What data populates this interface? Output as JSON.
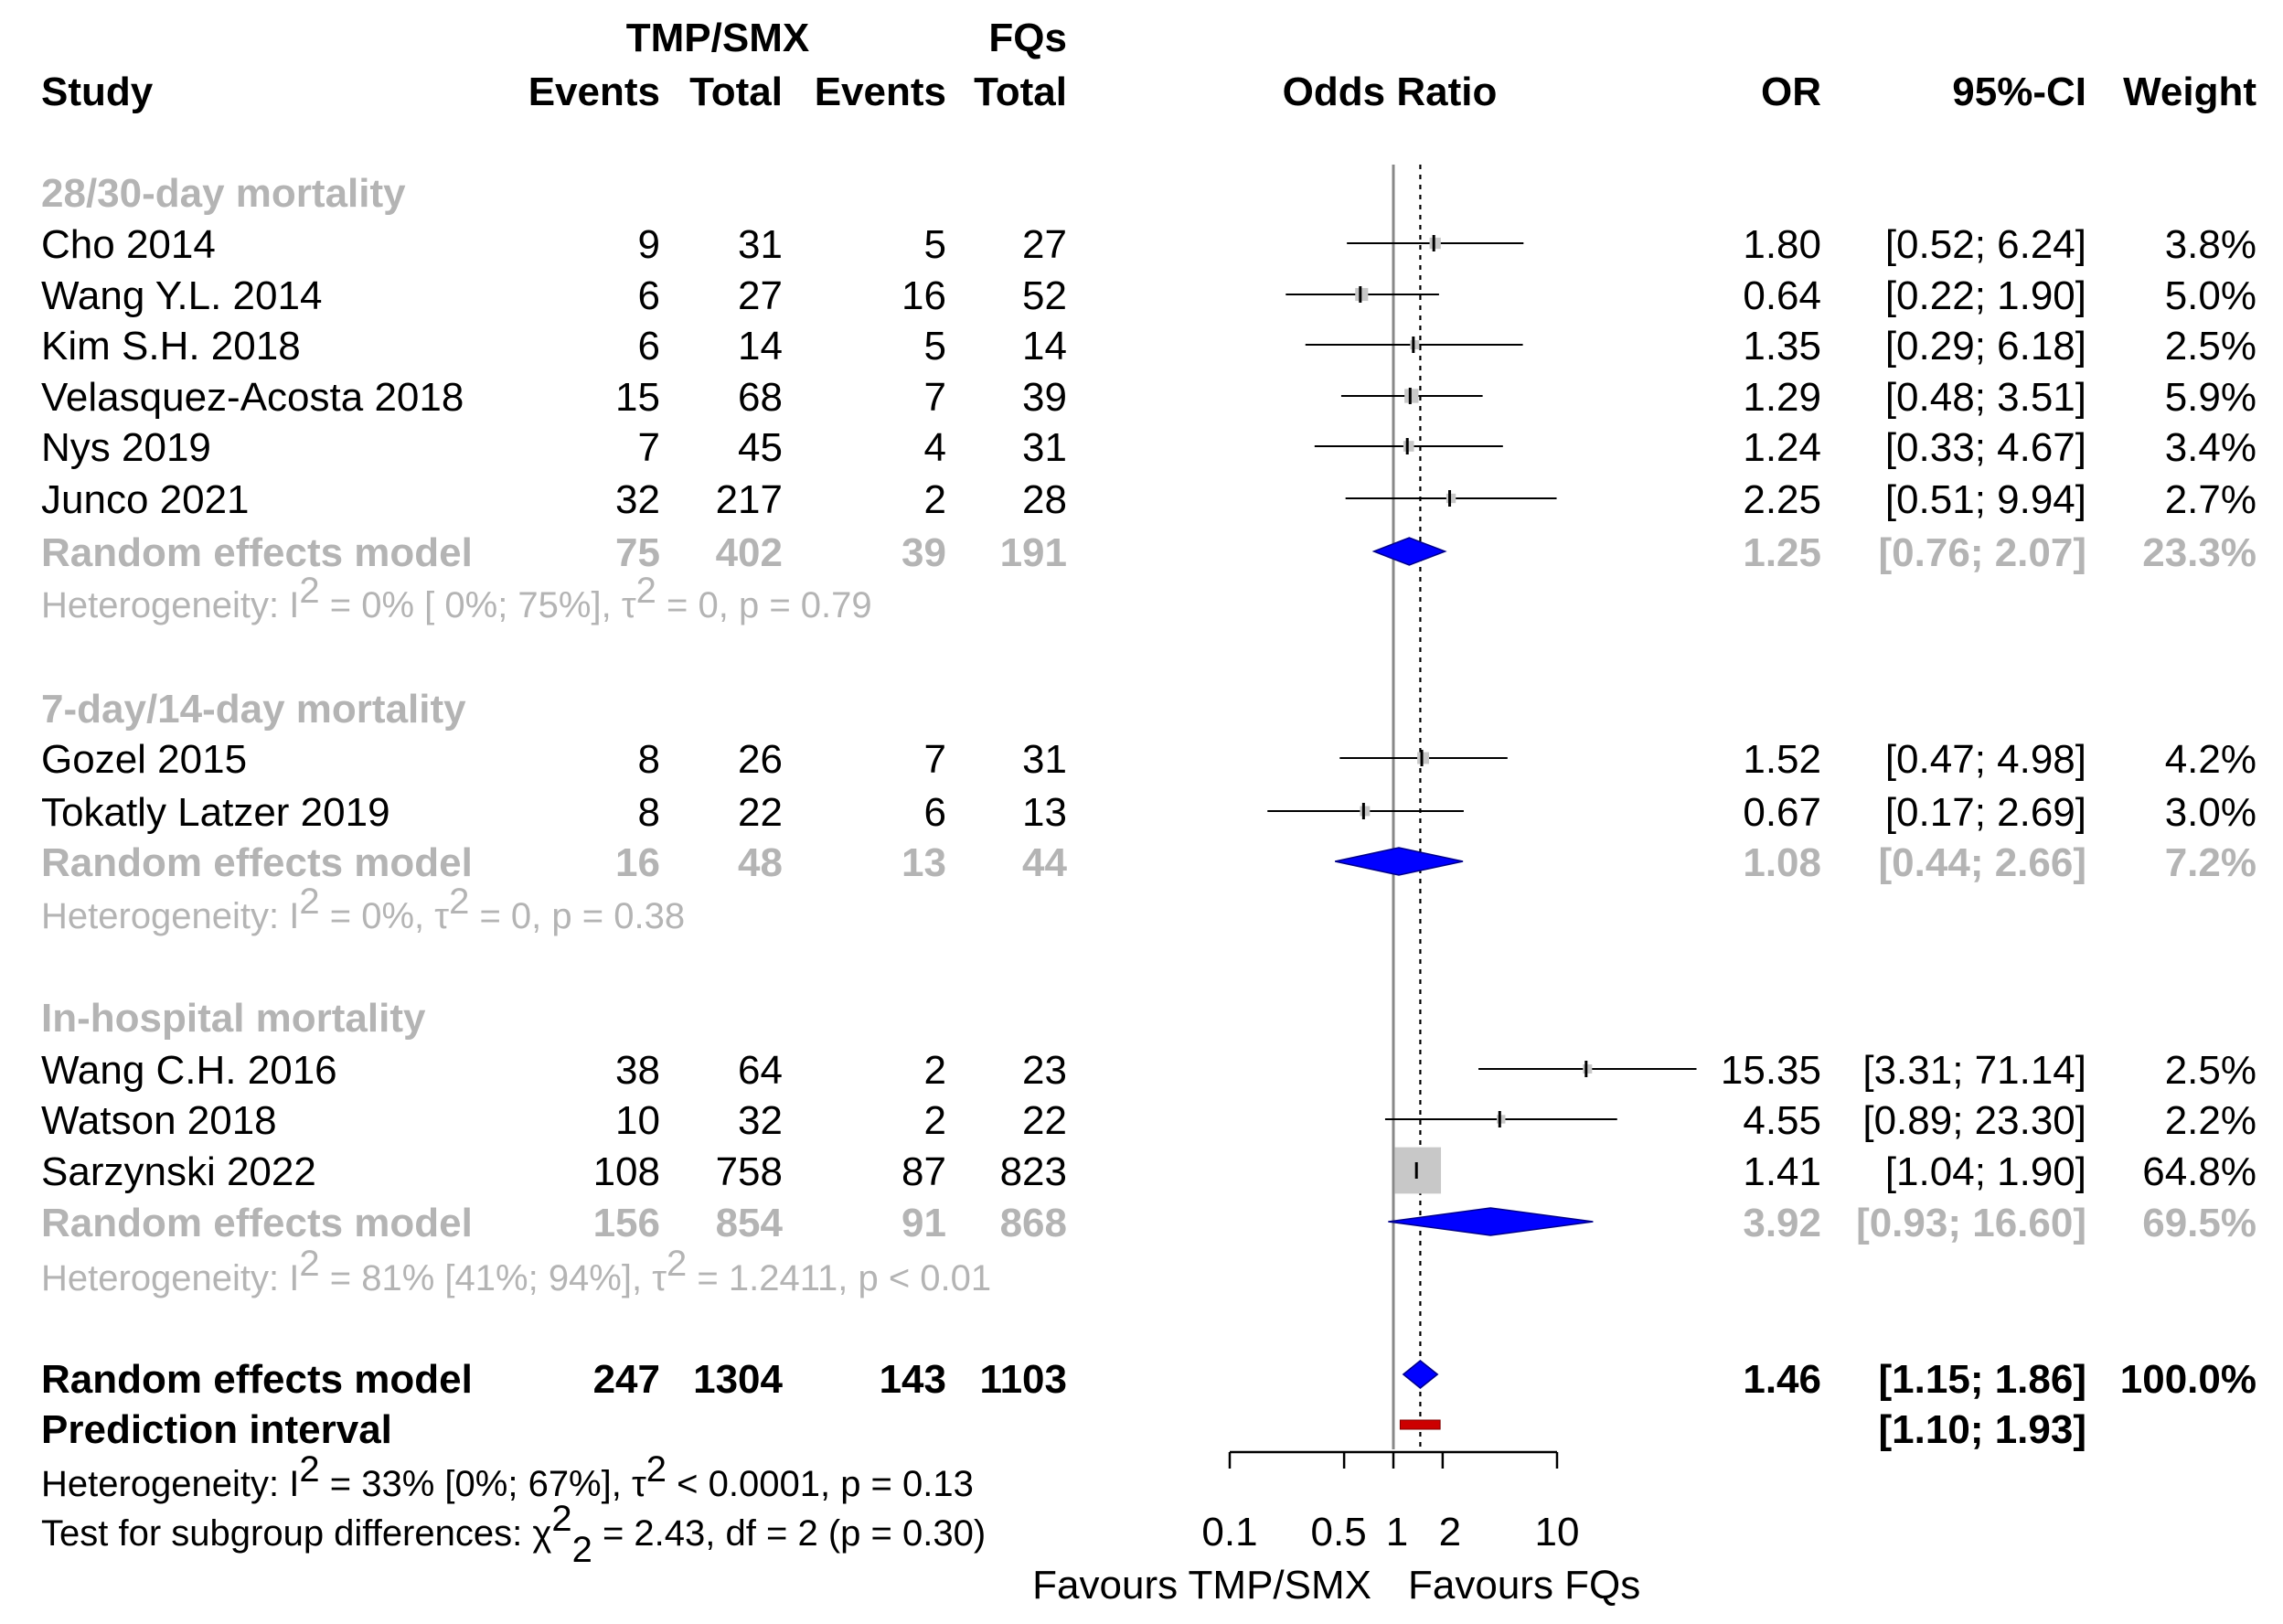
{
  "chart_data": {
    "type": "forest",
    "headers": {
      "study": "Study",
      "group1": "TMP/SMX",
      "group2": "FQs",
      "events": "Events",
      "total": "Total",
      "plot_title": "Odds Ratio",
      "or": "OR",
      "ci": "95%-CI",
      "weight": "Weight"
    },
    "x_axis": {
      "scale": "log",
      "range": [
        0.1,
        10
      ],
      "ticks": [
        {
          "value": 0.1,
          "label": "0.1"
        },
        {
          "value": 0.5,
          "label": "0.5"
        },
        {
          "value": 1,
          "label": "1"
        },
        {
          "value": 2,
          "label": "2"
        },
        {
          "value": 10,
          "label": "10"
        }
      ],
      "left_label": "Favours TMP/SMX",
      "right_label": "Favours FQs",
      "null_value": 1,
      "overall_estimate_line": 1.46
    },
    "subgroups": [
      {
        "name": "28/30-day mortality",
        "studies": [
          {
            "study": "Cho 2014",
            "e1": "9",
            "t1": "31",
            "e2": "5",
            "t2": "27",
            "or_text": "1.80",
            "ci_text": "[0.52;  6.24]",
            "weight_text": "3.8%",
            "or": 1.8,
            "lo": 0.52,
            "hi": 6.24,
            "w": 3.8
          },
          {
            "study": "Wang Y.L. 2014",
            "e1": "6",
            "t1": "27",
            "e2": "16",
            "t2": "52",
            "or_text": "0.64",
            "ci_text": "[0.22;  1.90]",
            "weight_text": "5.0%",
            "or": 0.64,
            "lo": 0.22,
            "hi": 1.9,
            "w": 5.0
          },
          {
            "study": "Kim S.H. 2018",
            "e1": "6",
            "t1": "14",
            "e2": "5",
            "t2": "14",
            "or_text": "1.35",
            "ci_text": "[0.29;  6.18]",
            "weight_text": "2.5%",
            "or": 1.35,
            "lo": 0.29,
            "hi": 6.18,
            "w": 2.5
          },
          {
            "study": "Velasquez-Acosta 2018",
            "e1": "15",
            "t1": "68",
            "e2": "7",
            "t2": "39",
            "or_text": "1.29",
            "ci_text": "[0.48;  3.51]",
            "weight_text": "5.9%",
            "or": 1.29,
            "lo": 0.48,
            "hi": 3.51,
            "w": 5.9
          },
          {
            "study": "Nys 2019",
            "e1": "7",
            "t1": "45",
            "e2": "4",
            "t2": "31",
            "or_text": "1.24",
            "ci_text": "[0.33;  4.67]",
            "weight_text": "3.4%",
            "or": 1.24,
            "lo": 0.33,
            "hi": 4.67,
            "w": 3.4
          },
          {
            "study": "Junco 2021",
            "e1": "32",
            "t1": "217",
            "e2": "2",
            "t2": "28",
            "or_text": "2.25",
            "ci_text": "[0.51;  9.94]",
            "weight_text": "2.7%",
            "or": 2.25,
            "lo": 0.51,
            "hi": 9.94,
            "w": 2.7
          }
        ],
        "model": {
          "label": "Random effects model",
          "e1": "75",
          "t1": "402",
          "e2": "39",
          "t2": "191",
          "or_text": "1.25",
          "ci_text": "[0.76;  2.07]",
          "weight_text": "23.3%",
          "or": 1.25,
          "lo": 0.76,
          "hi": 2.07
        },
        "heterogeneity": {
          "prefix": "Heterogeneity: ",
          "i2_symbol": "I",
          "i2_sup": "2",
          "i2_rest": " = 0% [ 0%; 75%], ",
          "tau_symbol": "τ",
          "tau_sup": "2",
          "tau_rest": " = 0, ",
          "p_symbol": "p",
          "p_rest": " = 0.79"
        }
      },
      {
        "name": "7-day/14-day mortality",
        "studies": [
          {
            "study": "Gozel 2015",
            "e1": "8",
            "t1": "26",
            "e2": "7",
            "t2": "31",
            "or_text": "1.52",
            "ci_text": "[0.47;  4.98]",
            "weight_text": "4.2%",
            "or": 1.52,
            "lo": 0.47,
            "hi": 4.98,
            "w": 4.2
          },
          {
            "study": "Tokatly Latzer 2019",
            "e1": "8",
            "t1": "22",
            "e2": "6",
            "t2": "13",
            "or_text": "0.67",
            "ci_text": "[0.17;  2.69]",
            "weight_text": "3.0%",
            "or": 0.67,
            "lo": 0.17,
            "hi": 2.69,
            "w": 3.0
          }
        ],
        "model": {
          "label": "Random effects model",
          "e1": "16",
          "t1": "48",
          "e2": "13",
          "t2": "44",
          "or_text": "1.08",
          "ci_text": "[0.44;  2.66]",
          "weight_text": "7.2%",
          "or": 1.08,
          "lo": 0.44,
          "hi": 2.66
        },
        "heterogeneity": {
          "prefix": "Heterogeneity: ",
          "i2_symbol": "I",
          "i2_sup": "2",
          "i2_rest": " = 0%, ",
          "tau_symbol": "τ",
          "tau_sup": "2",
          "tau_rest": " = 0, ",
          "p_symbol": "p",
          "p_rest": " = 0.38"
        }
      },
      {
        "name": "In-hospital mortality",
        "studies": [
          {
            "study": "Wang C.H. 2016",
            "e1": "38",
            "t1": "64",
            "e2": "2",
            "t2": "23",
            "or_text": "15.35",
            "ci_text": "[3.31; 71.14]",
            "weight_text": "2.5%",
            "or": 15.35,
            "lo": 3.31,
            "hi": 71.14,
            "w": 2.5
          },
          {
            "study": "Watson 2018",
            "e1": "10",
            "t1": "32",
            "e2": "2",
            "t2": "22",
            "or_text": "4.55",
            "ci_text": "[0.89; 23.30]",
            "weight_text": "2.2%",
            "or": 4.55,
            "lo": 0.89,
            "hi": 23.3,
            "w": 2.2
          },
          {
            "study": "Sarzynski 2022",
            "e1": "108",
            "t1": "758",
            "e2": "87",
            "t2": "823",
            "or_text": "1.41",
            "ci_text": "[1.04;  1.90]",
            "weight_text": "64.8%",
            "or": 1.41,
            "lo": 1.04,
            "hi": 1.9,
            "w": 64.8
          }
        ],
        "model": {
          "label": "Random effects model",
          "e1": "156",
          "t1": "854",
          "e2": "91",
          "t2": "868",
          "or_text": "3.92",
          "ci_text": "[0.93; 16.60]",
          "weight_text": "69.5%",
          "or": 3.92,
          "lo": 0.93,
          "hi": 16.6
        },
        "heterogeneity": {
          "prefix": "Heterogeneity: ",
          "i2_symbol": "I",
          "i2_sup": "2",
          "i2_rest": " = 81% [41%; 94%], ",
          "tau_symbol": "τ",
          "tau_sup": "2",
          "tau_rest": " = 1.2411, ",
          "p_symbol": "p",
          "p_rest": " < 0.01"
        }
      }
    ],
    "overall": {
      "label": "Random effects model",
      "e1": "247",
      "t1": "1304",
      "e2": "143",
      "t2": "1103",
      "or_text": "1.46",
      "ci_text": "[1.15;  1.86]",
      "weight_text": "100.0%",
      "or": 1.46,
      "lo": 1.15,
      "hi": 1.86
    },
    "prediction": {
      "label": "Prediction interval",
      "ci_text": "[1.10;  1.93]",
      "lo": 1.1,
      "hi": 1.93
    },
    "overall_heterogeneity": {
      "prefix": "Heterogeneity: ",
      "i2_symbol": "I",
      "i2_sup": "2",
      "i2_rest": " = 33% [0%; 67%], ",
      "tau_symbol": "τ",
      "tau_sup": "2",
      "tau_rest": " < 0.0001, ",
      "p_symbol": "p",
      "p_rest": " = 0.13"
    },
    "subgroup_test": {
      "prefix": "Test for subgroup differences: ",
      "chi_symbol": "χ",
      "chi_sup": "2",
      "chi_sub": "2",
      "chi_rest": " = 2.43, df = 2 (",
      "p_symbol": "p",
      "p_rest": " = 0.30)"
    },
    "colors": {
      "diamond": "#0000ff",
      "prediction": "#cc0000",
      "square": "#c8c8c8",
      "grey_text": "#b4b4b4",
      "line": "#000000"
    }
  }
}
